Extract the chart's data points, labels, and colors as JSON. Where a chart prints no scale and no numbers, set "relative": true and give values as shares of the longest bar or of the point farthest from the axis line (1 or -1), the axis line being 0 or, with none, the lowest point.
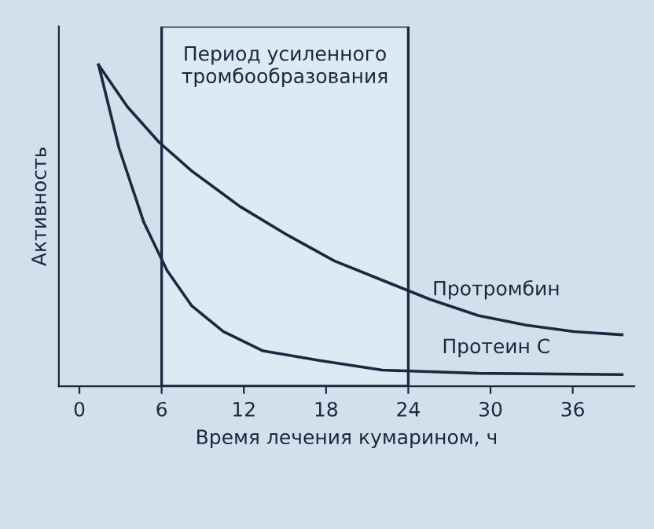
{
  "chart_data": {
    "type": "line",
    "relative": true,
    "xlabel": "Время лечения кумарином, ч",
    "ylabel": "Активность",
    "xlim": [
      -1.5,
      40.5
    ],
    "xticks": [
      0,
      6,
      12,
      18,
      24,
      30,
      36
    ],
    "tick_labels": "x",
    "grid": false,
    "legend": false,
    "marker": "none",
    "line_style": "solid",
    "bands": [
      {
        "axis": "x",
        "from": 6,
        "to": 24,
        "label": "Период усиленного\nтромбообразования",
        "color": "#dde9f3"
      }
    ],
    "series": [
      {
        "name": "Протромбин",
        "color": "#1c2840",
        "x": [
          1.4,
          3.5,
          5.8,
          8.2,
          11.7,
          15.2,
          18.6,
          22.1,
          25.6,
          29.1,
          32.6,
          36.1,
          39.6
        ],
        "values": [
          1,
          0.87,
          0.76,
          0.67,
          0.56,
          0.47,
          0.39,
          0.33,
          0.27,
          0.22,
          0.19,
          0.17,
          0.16
        ]
      },
      {
        "name": "Протеин С",
        "color": "#1c2840",
        "x": [
          1.4,
          2.9,
          4.7,
          6.4,
          8.2,
          10.5,
          13.4,
          17.5,
          22.1,
          29.1,
          39.6
        ],
        "values": [
          1,
          0.74,
          0.51,
          0.36,
          0.25,
          0.17,
          0.11,
          0.08,
          0.05,
          0.04,
          0.036
        ]
      }
    ]
  }
}
